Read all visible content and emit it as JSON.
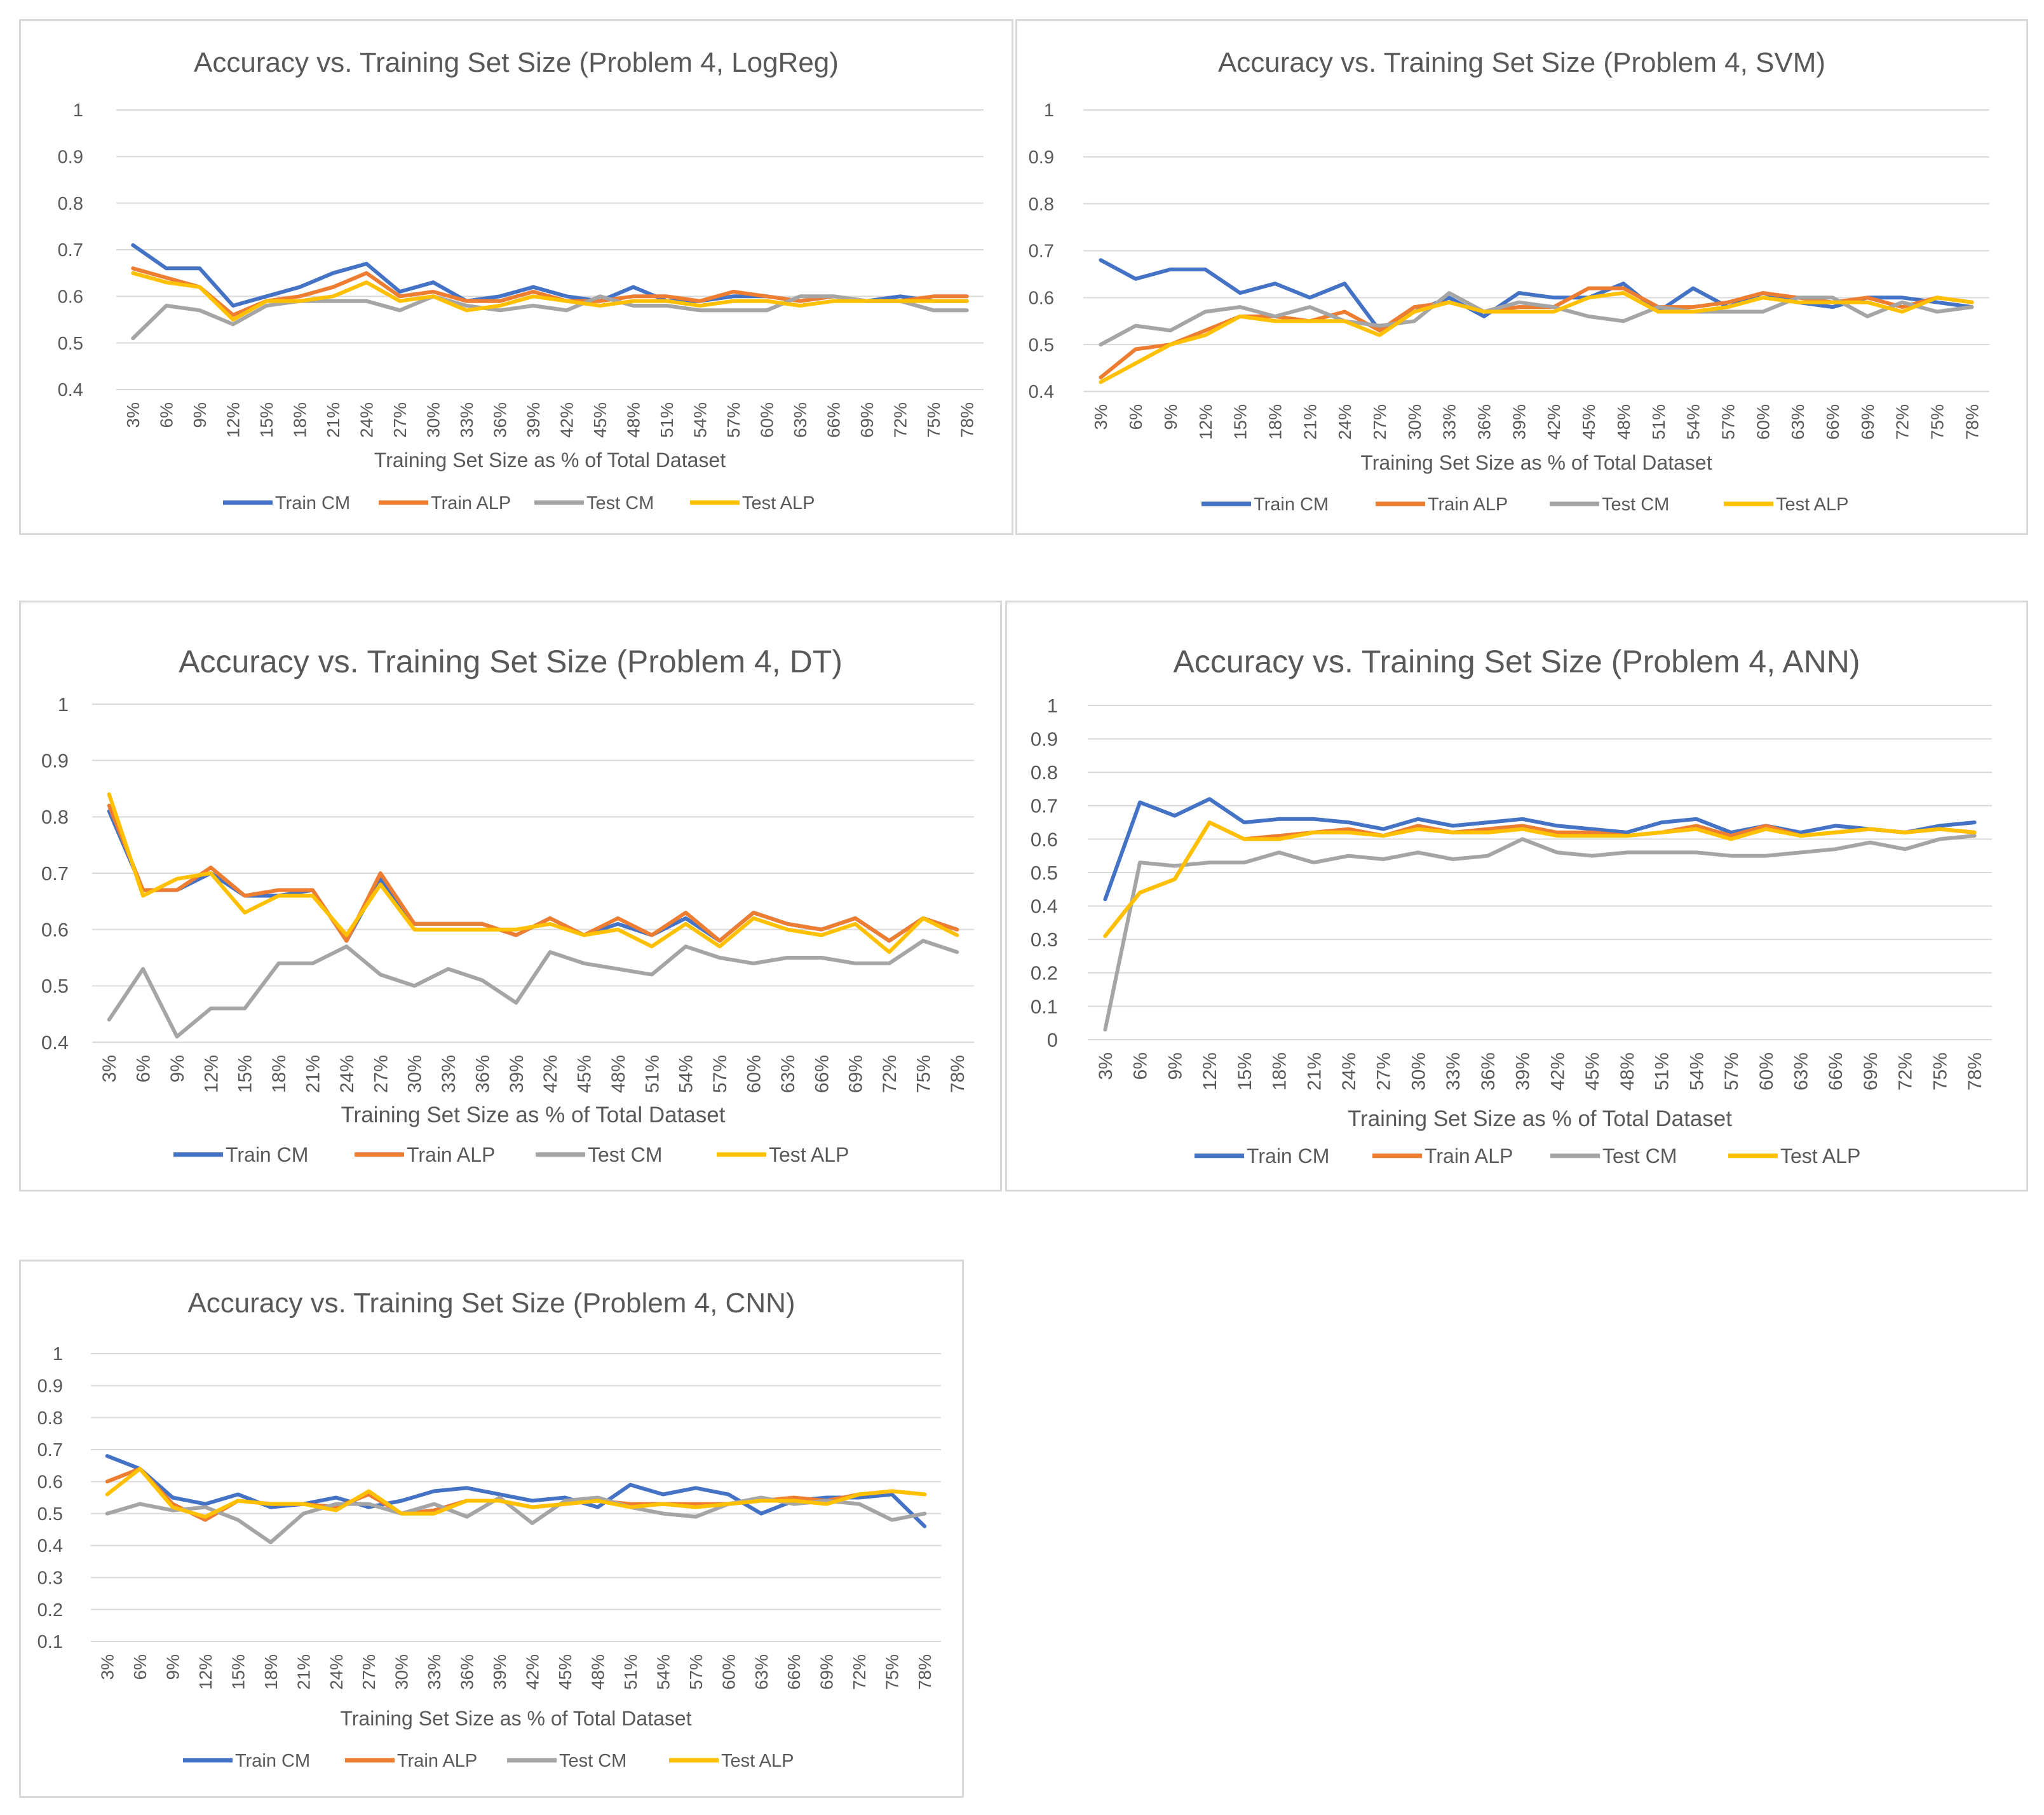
{
  "chart_data": [
    {
      "type": "line",
      "title": "Accuracy vs. Training Set Size (Problem 4, LogReg)",
      "xlabel": "Training Set Size as % of Total Dataset",
      "ylabel": "",
      "ylim": [
        0.4,
        1
      ],
      "yticks": [
        "0.4",
        "0.5",
        "0.6",
        "0.7",
        "0.8",
        "0.9",
        "1"
      ],
      "categories": [
        "3%",
        "6%",
        "9%",
        "12%",
        "15%",
        "18%",
        "21%",
        "24%",
        "27%",
        "30%",
        "33%",
        "36%",
        "39%",
        "42%",
        "45%",
        "48%",
        "51%",
        "54%",
        "57%",
        "60%",
        "63%",
        "66%",
        "69%",
        "72%",
        "75%",
        "78%"
      ],
      "series": [
        {
          "name": "Train CM",
          "color": "#4472c4",
          "values": [
            0.71,
            0.66,
            0.66,
            0.58,
            0.6,
            0.62,
            0.65,
            0.67,
            0.61,
            0.63,
            0.59,
            0.6,
            0.62,
            0.6,
            0.59,
            0.62,
            0.59,
            0.59,
            0.6,
            0.6,
            0.59,
            0.6,
            0.59,
            0.6,
            0.59,
            0.59
          ]
        },
        {
          "name": "Train ALP",
          "color": "#ed7d31",
          "values": [
            0.66,
            0.64,
            0.62,
            0.56,
            0.59,
            0.6,
            0.62,
            0.65,
            0.6,
            0.61,
            0.59,
            0.59,
            0.61,
            0.59,
            0.59,
            0.6,
            0.6,
            0.59,
            0.61,
            0.6,
            0.59,
            0.6,
            0.59,
            0.59,
            0.6,
            0.6
          ]
        },
        {
          "name": "Test CM",
          "color": "#a5a5a5",
          "values": [
            0.51,
            0.58,
            0.57,
            0.54,
            0.58,
            0.59,
            0.59,
            0.59,
            0.57,
            0.6,
            0.58,
            0.57,
            0.58,
            0.57,
            0.6,
            0.58,
            0.58,
            0.57,
            0.57,
            0.57,
            0.6,
            0.6,
            0.59,
            0.59,
            0.57,
            0.57
          ]
        },
        {
          "name": "Test ALP",
          "color": "#ffc000",
          "values": [
            0.65,
            0.63,
            0.62,
            0.55,
            0.59,
            0.59,
            0.6,
            0.63,
            0.59,
            0.6,
            0.57,
            0.58,
            0.6,
            0.59,
            0.58,
            0.59,
            0.59,
            0.58,
            0.59,
            0.59,
            0.58,
            0.59,
            0.59,
            0.59,
            0.59,
            0.59
          ]
        }
      ]
    },
    {
      "type": "line",
      "title": "Accuracy vs. Training Set Size (Problem 4, SVM)",
      "xlabel": "Training Set Size as % of Total Dataset",
      "ylabel": "",
      "ylim": [
        0.4,
        1
      ],
      "yticks": [
        "0.4",
        "0.5",
        "0.6",
        "0.7",
        "0.8",
        "0.9",
        "1"
      ],
      "categories": [
        "3%",
        "6%",
        "9%",
        "12%",
        "15%",
        "18%",
        "21%",
        "24%",
        "27%",
        "30%",
        "33%",
        "36%",
        "39%",
        "42%",
        "45%",
        "48%",
        "51%",
        "54%",
        "57%",
        "60%",
        "63%",
        "66%",
        "69%",
        "72%",
        "75%",
        "78%"
      ],
      "series": [
        {
          "name": "Train CM",
          "color": "#4472c4",
          "values": [
            0.68,
            0.64,
            0.66,
            0.66,
            0.61,
            0.63,
            0.6,
            0.63,
            0.53,
            0.57,
            0.6,
            0.56,
            0.61,
            0.6,
            0.6,
            0.63,
            0.57,
            0.62,
            0.58,
            0.61,
            0.59,
            0.58,
            0.6,
            0.6,
            0.59,
            0.58
          ]
        },
        {
          "name": "Train ALP",
          "color": "#ed7d31",
          "values": [
            0.43,
            0.49,
            0.5,
            0.53,
            0.56,
            0.56,
            0.55,
            0.57,
            0.53,
            0.58,
            0.59,
            0.57,
            0.58,
            0.58,
            0.62,
            0.62,
            0.58,
            0.58,
            0.59,
            0.61,
            0.6,
            0.59,
            0.6,
            0.58,
            0.6,
            0.59
          ]
        },
        {
          "name": "Test CM",
          "color": "#a5a5a5",
          "values": [
            0.5,
            0.54,
            0.53,
            0.57,
            0.58,
            0.56,
            0.58,
            0.55,
            0.54,
            0.55,
            0.61,
            0.57,
            0.59,
            0.58,
            0.56,
            0.55,
            0.58,
            0.57,
            0.57,
            0.57,
            0.6,
            0.6,
            0.56,
            0.59,
            0.57,
            0.58
          ]
        },
        {
          "name": "Test ALP",
          "color": "#ffc000",
          "values": [
            0.42,
            0.46,
            0.5,
            0.52,
            0.56,
            0.55,
            0.55,
            0.55,
            0.52,
            0.57,
            0.59,
            0.57,
            0.57,
            0.57,
            0.6,
            0.61,
            0.57,
            0.57,
            0.58,
            0.6,
            0.59,
            0.59,
            0.59,
            0.57,
            0.6,
            0.59
          ]
        }
      ]
    },
    {
      "type": "line",
      "title": "Accuracy vs. Training Set Size (Problem 4, DT)",
      "xlabel": "Training Set Size as % of Total Dataset",
      "ylabel": "",
      "ylim": [
        0.4,
        1
      ],
      "yticks": [
        "0.4",
        "0.5",
        "0.6",
        "0.7",
        "0.8",
        "0.9",
        "1"
      ],
      "categories": [
        "3%",
        "6%",
        "9%",
        "12%",
        "15%",
        "18%",
        "21%",
        "24%",
        "27%",
        "30%",
        "33%",
        "36%",
        "39%",
        "42%",
        "45%",
        "48%",
        "51%",
        "54%",
        "57%",
        "60%",
        "63%",
        "66%",
        "69%",
        "72%",
        "75%",
        "78%"
      ],
      "series": [
        {
          "name": "Train CM",
          "color": "#4472c4",
          "values": [
            0.81,
            0.67,
            0.67,
            0.7,
            0.66,
            0.66,
            0.67,
            0.58,
            0.69,
            0.61,
            0.61,
            0.61,
            0.59,
            0.62,
            0.59,
            0.61,
            0.59,
            0.62,
            0.58,
            0.63,
            0.61,
            0.6,
            0.62,
            0.58,
            0.62,
            0.6
          ]
        },
        {
          "name": "Train ALP",
          "color": "#ed7d31",
          "values": [
            0.82,
            0.67,
            0.67,
            0.71,
            0.66,
            0.67,
            0.67,
            0.58,
            0.7,
            0.61,
            0.61,
            0.61,
            0.59,
            0.62,
            0.59,
            0.62,
            0.59,
            0.63,
            0.58,
            0.63,
            0.61,
            0.6,
            0.62,
            0.58,
            0.62,
            0.6
          ]
        },
        {
          "name": "Test CM",
          "color": "#a5a5a5",
          "values": [
            0.44,
            0.53,
            0.41,
            0.46,
            0.46,
            0.54,
            0.54,
            0.57,
            0.52,
            0.5,
            0.53,
            0.51,
            0.47,
            0.56,
            0.54,
            0.53,
            0.52,
            0.57,
            0.55,
            0.54,
            0.55,
            0.55,
            0.54,
            0.54,
            0.58,
            0.56
          ]
        },
        {
          "name": "Test ALP",
          "color": "#ffc000",
          "values": [
            0.84,
            0.66,
            0.69,
            0.7,
            0.63,
            0.66,
            0.66,
            0.59,
            0.68,
            0.6,
            0.6,
            0.6,
            0.6,
            0.61,
            0.59,
            0.6,
            0.57,
            0.61,
            0.57,
            0.62,
            0.6,
            0.59,
            0.61,
            0.56,
            0.62,
            0.59
          ]
        }
      ]
    },
    {
      "type": "line",
      "title": "Accuracy vs. Training Set Size (Problem 4, ANN)",
      "xlabel": "Training Set Size as % of Total Dataset",
      "ylabel": "",
      "ylim": [
        0,
        1
      ],
      "yticks": [
        "0",
        "0.1",
        "0.2",
        "0.3",
        "0.4",
        "0.5",
        "0.6",
        "0.7",
        "0.8",
        "0.9",
        "1"
      ],
      "categories": [
        "3%",
        "6%",
        "9%",
        "12%",
        "15%",
        "18%",
        "21%",
        "24%",
        "27%",
        "30%",
        "33%",
        "36%",
        "39%",
        "42%",
        "45%",
        "48%",
        "51%",
        "54%",
        "57%",
        "60%",
        "63%",
        "66%",
        "69%",
        "72%",
        "75%",
        "78%"
      ],
      "series": [
        {
          "name": "Train CM",
          "color": "#4472c4",
          "values": [
            0.42,
            0.71,
            0.67,
            0.72,
            0.65,
            0.66,
            0.66,
            0.65,
            0.63,
            0.66,
            0.64,
            0.65,
            0.66,
            0.64,
            0.63,
            0.62,
            0.65,
            0.66,
            0.62,
            0.64,
            0.62,
            0.64,
            0.63,
            0.62,
            0.64,
            0.65
          ]
        },
        {
          "name": "Train ALP",
          "color": "#ed7d31",
          "values": [
            0.31,
            0.44,
            0.48,
            0.65,
            0.6,
            0.61,
            0.62,
            0.63,
            0.61,
            0.64,
            0.62,
            0.63,
            0.64,
            0.62,
            0.62,
            0.61,
            0.62,
            0.64,
            0.61,
            0.64,
            0.61,
            0.62,
            0.63,
            0.62,
            0.63,
            0.62
          ]
        },
        {
          "name": "Test CM",
          "color": "#a5a5a5",
          "values": [
            0.03,
            0.53,
            0.52,
            0.53,
            0.53,
            0.56,
            0.53,
            0.55,
            0.54,
            0.56,
            0.54,
            0.55,
            0.6,
            0.56,
            0.55,
            0.56,
            0.56,
            0.56,
            0.55,
            0.55,
            0.56,
            0.57,
            0.59,
            0.57,
            0.6,
            0.61
          ]
        },
        {
          "name": "Test ALP",
          "color": "#ffc000",
          "values": [
            0.31,
            0.44,
            0.48,
            0.65,
            0.6,
            0.6,
            0.62,
            0.62,
            0.61,
            0.63,
            0.62,
            0.62,
            0.63,
            0.61,
            0.61,
            0.61,
            0.62,
            0.63,
            0.6,
            0.63,
            0.61,
            0.62,
            0.63,
            0.62,
            0.63,
            0.62
          ]
        }
      ]
    },
    {
      "type": "line",
      "title": "Accuracy vs. Training Set Size (Problem 4, CNN)",
      "xlabel": "Training Set Size as % of Total Dataset",
      "ylabel": "",
      "ylim": [
        0.1,
        1
      ],
      "yticks": [
        "0.1",
        "0.2",
        "0.3",
        "0.4",
        "0.5",
        "0.6",
        "0.7",
        "0.8",
        "0.9",
        "1"
      ],
      "categories": [
        "3%",
        "6%",
        "9%",
        "12%",
        "15%",
        "18%",
        "21%",
        "24%",
        "27%",
        "30%",
        "33%",
        "36%",
        "39%",
        "42%",
        "45%",
        "48%",
        "51%",
        "54%",
        "57%",
        "60%",
        "63%",
        "66%",
        "69%",
        "72%",
        "75%",
        "78%"
      ],
      "series": [
        {
          "name": "Train CM",
          "color": "#4472c4",
          "values": [
            0.68,
            0.64,
            0.55,
            0.53,
            0.56,
            0.52,
            0.53,
            0.55,
            0.52,
            0.54,
            0.57,
            0.58,
            0.56,
            0.54,
            0.55,
            0.52,
            0.59,
            0.56,
            0.58,
            0.56,
            0.5,
            0.54,
            0.55,
            0.55,
            0.56,
            0.46
          ]
        },
        {
          "name": "Train ALP",
          "color": "#ed7d31",
          "values": [
            0.6,
            0.64,
            0.53,
            0.48,
            0.54,
            0.53,
            0.53,
            0.52,
            0.56,
            0.5,
            0.51,
            0.54,
            0.54,
            0.52,
            0.53,
            0.54,
            0.53,
            0.53,
            0.53,
            0.53,
            0.54,
            0.55,
            0.54,
            0.56,
            0.57,
            0.56
          ]
        },
        {
          "name": "Test CM",
          "color": "#a5a5a5",
          "values": [
            0.5,
            0.53,
            0.51,
            0.52,
            0.48,
            0.41,
            0.5,
            0.53,
            0.53,
            0.5,
            0.53,
            0.49,
            0.55,
            0.47,
            0.54,
            0.55,
            0.52,
            0.5,
            0.49,
            0.53,
            0.55,
            0.53,
            0.54,
            0.53,
            0.48,
            0.5
          ]
        },
        {
          "name": "Test ALP",
          "color": "#ffc000",
          "values": [
            0.56,
            0.64,
            0.52,
            0.49,
            0.54,
            0.53,
            0.53,
            0.51,
            0.57,
            0.5,
            0.5,
            0.54,
            0.54,
            0.52,
            0.53,
            0.54,
            0.52,
            0.53,
            0.52,
            0.53,
            0.54,
            0.54,
            0.53,
            0.56,
            0.57,
            0.56
          ]
        }
      ]
    }
  ]
}
